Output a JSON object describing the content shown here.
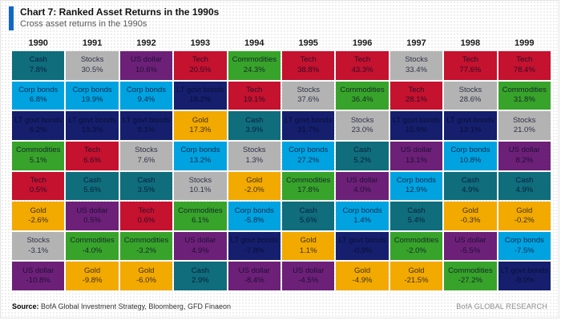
{
  "header": {
    "title": "Chart 7: Ranked Asset Returns in the 1990s",
    "subtitle": "Cross asset returns in the 1990s",
    "accent_color": "#1168c4"
  },
  "footer": {
    "source_label": "Source:",
    "source_text": " BofA Global Investment Strategy, Bloomberg, GFD Finaeon",
    "brand": "BofA GLOBAL RESEARCH"
  },
  "asset_colors": {
    "Cash": "#0f6d7c",
    "Stocks": "#b3b3b3",
    "US dollar": "#6d2077",
    "Tech": "#c4122f",
    "Commodities": "#38a32a",
    "Corp bonds": "#00a3e0",
    "LT govt bonds": "#151f6d",
    "Gold": "#f2a900"
  },
  "chart_data": {
    "type": "table",
    "title": "Chart 7: Ranked Asset Returns in the 1990s",
    "subtitle": "Cross asset returns in the 1990s",
    "years": [
      "1990",
      "1991",
      "1992",
      "1993",
      "1994",
      "1995",
      "1996",
      "1997",
      "1998",
      "1999"
    ],
    "legend_position": "none",
    "columns": [
      {
        "year": "1990",
        "cells": [
          {
            "asset": "Cash",
            "value": "7.8%"
          },
          {
            "asset": "Corp bonds",
            "value": "6.8%"
          },
          {
            "asset": "LT govt bonds",
            "value": "6.2%"
          },
          {
            "asset": "Commodities",
            "value": "5.1%"
          },
          {
            "asset": "Tech",
            "value": "0.5%"
          },
          {
            "asset": "Gold",
            "value": "-2.6%"
          },
          {
            "asset": "Stocks",
            "value": "-3.1%"
          },
          {
            "asset": "US dollar",
            "value": "-10.8%"
          }
        ]
      },
      {
        "year": "1991",
        "cells": [
          {
            "asset": "Stocks",
            "value": "30.5%"
          },
          {
            "asset": "Corp bonds",
            "value": "19.9%"
          },
          {
            "asset": "LT govt bonds",
            "value": "19.3%"
          },
          {
            "asset": "Tech",
            "value": "6.6%"
          },
          {
            "asset": "Cash",
            "value": "5.6%"
          },
          {
            "asset": "US dollar",
            "value": "0.5%"
          },
          {
            "asset": "Commodities",
            "value": "-4.0%"
          },
          {
            "asset": "Gold",
            "value": "-9.8%"
          }
        ]
      },
      {
        "year": "1992",
        "cells": [
          {
            "asset": "US dollar",
            "value": "10.6%"
          },
          {
            "asset": "Corp bonds",
            "value": "9.4%"
          },
          {
            "asset": "LT govt bonds",
            "value": "8.1%"
          },
          {
            "asset": "Stocks",
            "value": "7.6%"
          },
          {
            "asset": "Cash",
            "value": "3.5%"
          },
          {
            "asset": "Tech",
            "value": "0.6%"
          },
          {
            "asset": "Commodities",
            "value": "-3.2%"
          },
          {
            "asset": "Gold",
            "value": "-6.0%"
          }
        ]
      },
      {
        "year": "1993",
        "cells": [
          {
            "asset": "Tech",
            "value": "20.5%"
          },
          {
            "asset": "LT govt bonds",
            "value": "18.2%"
          },
          {
            "asset": "Gold",
            "value": "17.3%"
          },
          {
            "asset": "Corp bonds",
            "value": "13.2%"
          },
          {
            "asset": "Stocks",
            "value": "10.1%"
          },
          {
            "asset": "Commodities",
            "value": "6.1%"
          },
          {
            "asset": "US dollar",
            "value": "4.9%"
          },
          {
            "asset": "Cash",
            "value": "2.9%"
          }
        ]
      },
      {
        "year": "1994",
        "cells": [
          {
            "asset": "Commodities",
            "value": "24.3%"
          },
          {
            "asset": "Tech",
            "value": "19.1%"
          },
          {
            "asset": "Cash",
            "value": "3.9%"
          },
          {
            "asset": "Stocks",
            "value": "1.3%"
          },
          {
            "asset": "Gold",
            "value": "-2.0%"
          },
          {
            "asset": "Corp bonds",
            "value": "-5.8%"
          },
          {
            "asset": "LT govt bonds",
            "value": "-7.8%"
          },
          {
            "asset": "US dollar",
            "value": "-8.4%"
          }
        ]
      },
      {
        "year": "1995",
        "cells": [
          {
            "asset": "Tech",
            "value": "38.8%"
          },
          {
            "asset": "Stocks",
            "value": "37.6%"
          },
          {
            "asset": "LT govt bonds",
            "value": "31.7%"
          },
          {
            "asset": "Corp bonds",
            "value": "27.2%"
          },
          {
            "asset": "Commodities",
            "value": "17.8%"
          },
          {
            "asset": "Cash",
            "value": "5.6%"
          },
          {
            "asset": "Gold",
            "value": "1.1%"
          },
          {
            "asset": "US dollar",
            "value": "-4.5%"
          }
        ]
      },
      {
        "year": "1996",
        "cells": [
          {
            "asset": "Tech",
            "value": "43.3%"
          },
          {
            "asset": "Commodities",
            "value": "36.4%"
          },
          {
            "asset": "Stocks",
            "value": "23.0%"
          },
          {
            "asset": "Cash",
            "value": "5.2%"
          },
          {
            "asset": "US dollar",
            "value": "4.0%"
          },
          {
            "asset": "Corp bonds",
            "value": "1.4%"
          },
          {
            "asset": "LT govt bonds",
            "value": "-0.9%"
          },
          {
            "asset": "Gold",
            "value": "-4.9%"
          }
        ]
      },
      {
        "year": "1997",
        "cells": [
          {
            "asset": "Stocks",
            "value": "33.4%"
          },
          {
            "asset": "Tech",
            "value": "28.1%"
          },
          {
            "asset": "LT govt bonds",
            "value": "15.9%"
          },
          {
            "asset": "US dollar",
            "value": "13.1%"
          },
          {
            "asset": "Corp bonds",
            "value": "12.9%"
          },
          {
            "asset": "Cash",
            "value": "5.4%"
          },
          {
            "asset": "Commodities",
            "value": "-2.0%"
          },
          {
            "asset": "Gold",
            "value": "-21.5%"
          }
        ]
      },
      {
        "year": "1998",
        "cells": [
          {
            "asset": "Tech",
            "value": "77.6%"
          },
          {
            "asset": "Stocks",
            "value": "28.6%"
          },
          {
            "asset": "LT govt bonds",
            "value": "13.1%"
          },
          {
            "asset": "Corp bonds",
            "value": "10.8%"
          },
          {
            "asset": "Cash",
            "value": "4.9%"
          },
          {
            "asset": "Gold",
            "value": "-0.3%"
          },
          {
            "asset": "US dollar",
            "value": "-5.5%"
          },
          {
            "asset": "Commodities",
            "value": "-27.2%"
          }
        ]
      },
      {
        "year": "1999",
        "cells": [
          {
            "asset": "Tech",
            "value": "78.4%"
          },
          {
            "asset": "Commodities",
            "value": "31.8%"
          },
          {
            "asset": "Stocks",
            "value": "21.0%"
          },
          {
            "asset": "US dollar",
            "value": "8.2%"
          },
          {
            "asset": "Cash",
            "value": "4.9%"
          },
          {
            "asset": "Gold",
            "value": "-0.2%"
          },
          {
            "asset": "Corp bonds",
            "value": "-7.5%"
          },
          {
            "asset": "LT govt bonds",
            "value": "-9.0%"
          }
        ]
      }
    ]
  }
}
